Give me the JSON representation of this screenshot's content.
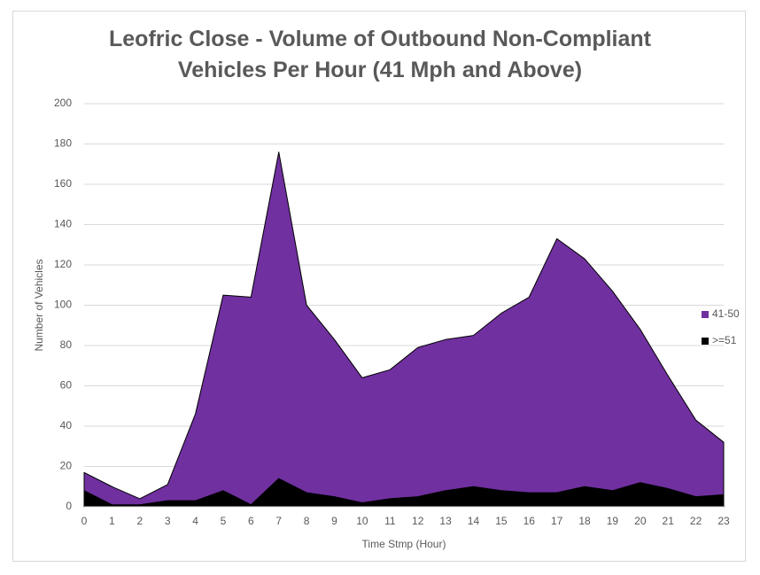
{
  "chart_data": {
    "type": "stacked-area",
    "title": "Leofric Close - Volume of Outbound Non-Compliant Vehicles Per Hour (41 Mph and Above)",
    "x_label": "Time Stmp (Hour)",
    "y_label": "Number of Vehicles",
    "categories": [
      "0",
      "1",
      "2",
      "3",
      "4",
      "5",
      "6",
      "7",
      "8",
      "9",
      "10",
      "11",
      "12",
      "13",
      "14",
      "15",
      "16",
      "17",
      "18",
      "19",
      "20",
      "21",
      "22",
      "23"
    ],
    "series": [
      {
        "name": "41-50",
        "color": "#7030a0",
        "values": [
          9,
          9,
          3,
          8,
          43,
          97,
          103,
          162,
          93,
          78,
          62,
          64,
          74,
          75,
          75,
          88,
          97,
          126,
          113,
          99,
          76,
          56,
          38,
          26
        ]
      },
      {
        "name": ">=51",
        "color": "#000000",
        "values": [
          8,
          1,
          1,
          3,
          3,
          8,
          1,
          14,
          7,
          5,
          2,
          4,
          5,
          8,
          10,
          8,
          7,
          7,
          10,
          8,
          12,
          9,
          5,
          6
        ]
      }
    ],
    "ylim": [
      0,
      200
    ],
    "yticks": [
      0,
      20,
      40,
      60,
      80,
      100,
      120,
      140,
      160,
      180,
      200
    ],
    "grid": true,
    "legend": "right"
  }
}
